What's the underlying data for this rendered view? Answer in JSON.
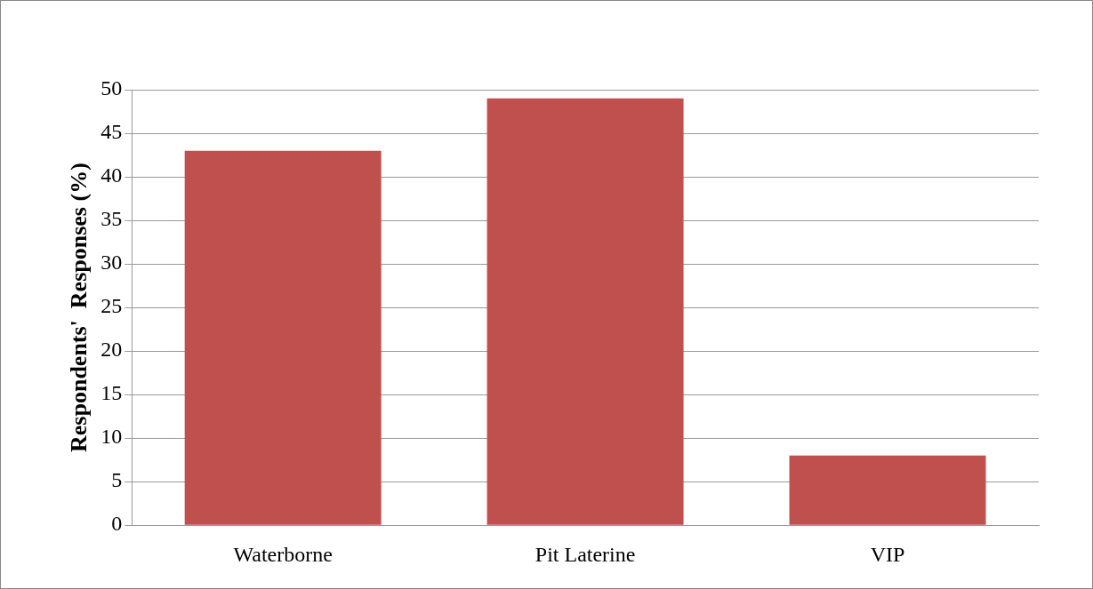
{
  "chart_data": {
    "type": "bar",
    "ylabel": "Respondents'  Responses (%)",
    "categories": [
      "Waterborne",
      "Pit Laterine",
      "VIP"
    ],
    "values": [
      43,
      49,
      8
    ],
    "color": "#c0504d",
    "ylim": [
      0,
      50
    ],
    "yticks": [
      0,
      5,
      10,
      15,
      20,
      25,
      30,
      35,
      40,
      45,
      50
    ],
    "grid": "y"
  }
}
